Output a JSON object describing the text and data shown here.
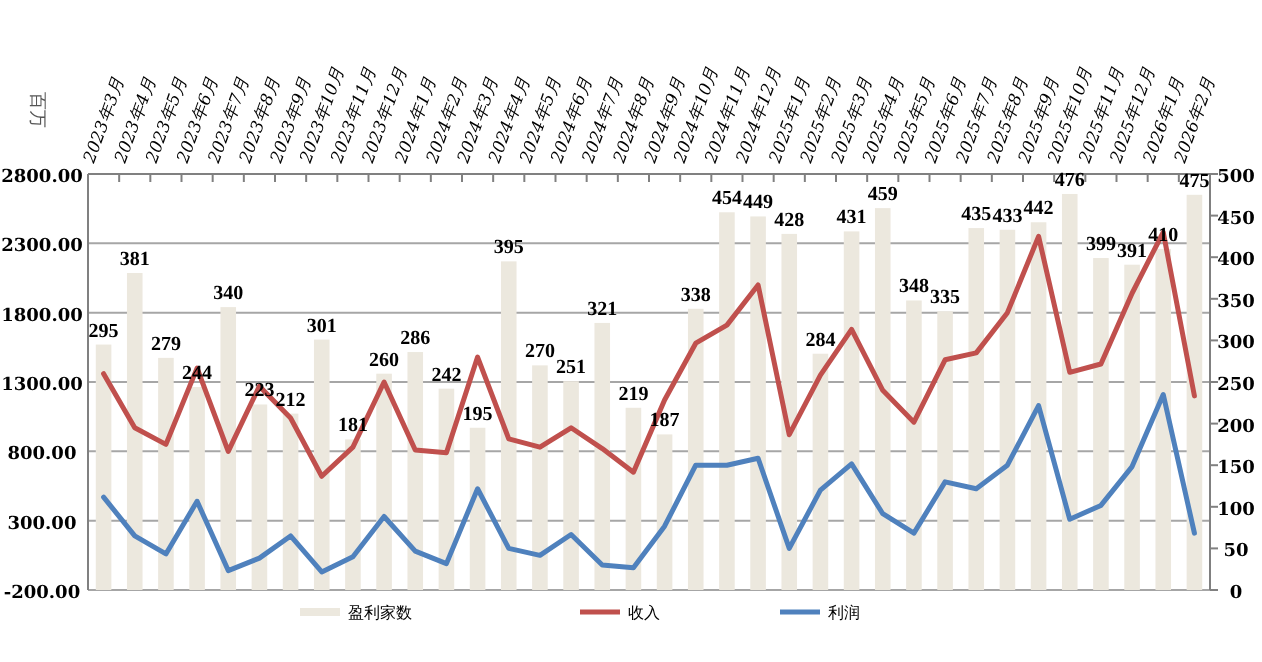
{
  "chart_data": {
    "type": "line",
    "ylabel": "百万",
    "categories": [
      "2023年3月",
      "2023年4月",
      "2023年5月",
      "2023年6月",
      "2023年7月",
      "2023年8月",
      "2023年9月",
      "2023年10月",
      "2023年11月",
      "2023年12月",
      "2024年1月",
      "2024年2月",
      "2024年3月",
      "2024年4月",
      "2024年5月",
      "2024年6月",
      "2024年7月",
      "2024年8月",
      "2024年9月",
      "2024年10月",
      "2024年11月",
      "2024年12月",
      "2025年1月",
      "2025年2月",
      "2025年3月",
      "2025年4月",
      "2025年5月",
      "2025年6月",
      "2025年7月",
      "2025年8月",
      "2025年9月",
      "2025年10月",
      "2025年11月",
      "2025年12月",
      "2026年1月",
      "2026年2月"
    ],
    "series": [
      {
        "name": "盈利家数",
        "type": "bar",
        "axis": "y2",
        "color": "#ece8de",
        "values": [
          295,
          381,
          279,
          244,
          340,
          223,
          212,
          301,
          181,
          260,
          286,
          242,
          195,
          395,
          270,
          251,
          321,
          219,
          187,
          338,
          454,
          449,
          428,
          284,
          431,
          459,
          348,
          335,
          435,
          433,
          442,
          476,
          399,
          391,
          410,
          475
        ],
        "value_labels": [
          "295",
          "381",
          "279",
          "244",
          "340",
          "223",
          "212",
          "301",
          "181",
          "260",
          "286",
          "242",
          "195",
          "395",
          "270",
          "251",
          "321",
          "219",
          "187",
          "338",
          "454",
          "449",
          "428",
          "284",
          "431",
          "459",
          "348",
          "335",
          "435",
          "433",
          "442",
          "476",
          "399",
          "391",
          "410",
          "475"
        ]
      },
      {
        "name": "收入",
        "color": "#c0504d",
        "values": [
          1360,
          970,
          850,
          1400,
          800,
          1270,
          1040,
          620,
          830,
          1300,
          810,
          790,
          1480,
          890,
          830,
          970,
          820,
          650,
          1170,
          1580,
          1710,
          2000,
          920,
          1350,
          1680,
          1240,
          1010,
          1460,
          1510,
          1800,
          2350,
          1370,
          1430,
          1940,
          2380,
          1200
        ]
      },
      {
        "name": "利润",
        "color": "#4f81bd",
        "values": [
          470,
          190,
          60,
          440,
          -60,
          30,
          190,
          -70,
          40,
          330,
          80,
          -10,
          530,
          100,
          50,
          200,
          -20,
          -40,
          260,
          700,
          700,
          750,
          100,
          520,
          710,
          350,
          210,
          580,
          530,
          700,
          1130,
          310,
          410,
          690,
          1210,
          210
        ]
      }
    ],
    "ylim": [
      -200,
      2800
    ],
    "yticks": [
      {
        "value": -200,
        "label": "-200.00"
      },
      {
        "value": 300,
        "label": "300.00"
      },
      {
        "value": 800,
        "label": "800.00"
      },
      {
        "value": 1300,
        "label": "1300.00"
      },
      {
        "value": 1800,
        "label": "1800.00"
      },
      {
        "value": 2300,
        "label": "2300.00"
      },
      {
        "value": 2800,
        "label": "2800.00"
      }
    ],
    "y2lim": [
      0,
      500
    ],
    "y2ticks": [
      0,
      50,
      100,
      150,
      200,
      250,
      300,
      350,
      400,
      450,
      500
    ],
    "grid": "y",
    "legend": "bottom"
  }
}
